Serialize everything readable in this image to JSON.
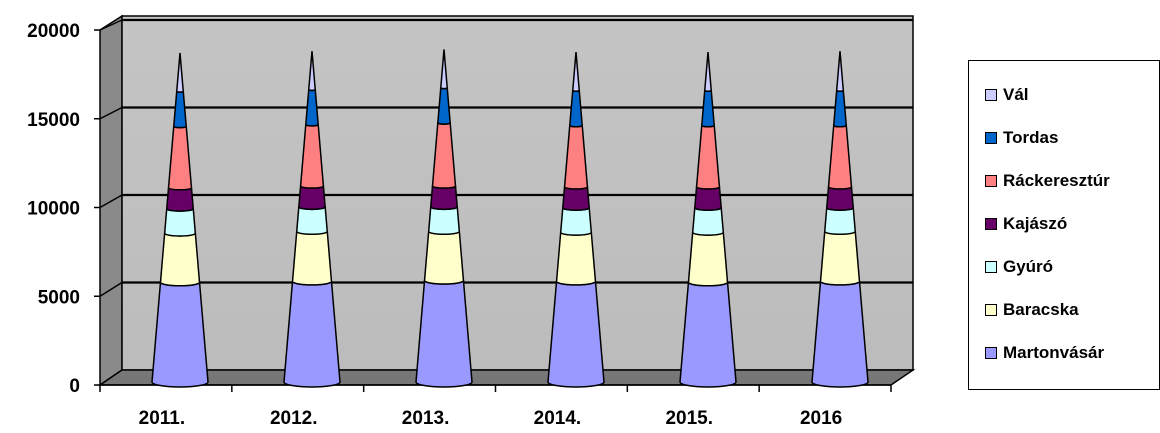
{
  "chart_data": {
    "type": "bar",
    "style": "3d-stacked-cone",
    "categories": [
      "2011.",
      "2012.",
      "2013.",
      "2014.",
      "2015.",
      "2016"
    ],
    "ylim": [
      0,
      20000
    ],
    "yticks": [
      "0",
      "5000",
      "10000",
      "15000",
      "20000"
    ],
    "grid": true,
    "legend_position": "right",
    "series": [
      {
        "name": "Martonvásár",
        "color": "#9999ff",
        "values": [
          5700,
          5750,
          5800,
          5750,
          5700,
          5750
        ]
      },
      {
        "name": "Baracska",
        "color": "#ffffcc",
        "values": [
          2800,
          2850,
          2800,
          2800,
          2850,
          2850
        ]
      },
      {
        "name": "Gyúró",
        "color": "#ccffff",
        "values": [
          1400,
          1400,
          1400,
          1400,
          1400,
          1350
        ]
      },
      {
        "name": "Kajászó",
        "color": "#660066",
        "values": [
          1200,
          1200,
          1200,
          1200,
          1200,
          1200
        ]
      },
      {
        "name": "Ráckeresztúr",
        "color": "#ff8080",
        "values": [
          3500,
          3500,
          3600,
          3500,
          3500,
          3500
        ]
      },
      {
        "name": "Tordas",
        "color": "#0066cc",
        "values": [
          2000,
          2000,
          2000,
          2000,
          2000,
          2000
        ]
      },
      {
        "name": "Vál",
        "color": "#ccccff",
        "values": [
          2200,
          2200,
          2200,
          2200,
          2200,
          2250
        ]
      }
    ]
  }
}
